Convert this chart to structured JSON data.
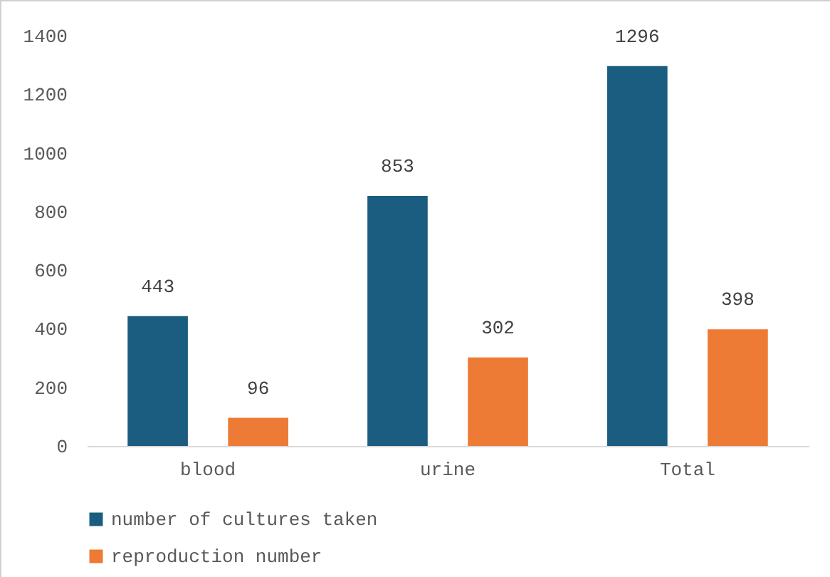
{
  "chart_data": {
    "type": "bar",
    "categories": [
      "blood",
      "urine",
      "Total"
    ],
    "series": [
      {
        "name": "number of cultures taken",
        "color": "#1b5d80",
        "values": [
          443,
          853,
          1296
        ]
      },
      {
        "name": "reproduction number",
        "color": "#ed7a35",
        "values": [
          96,
          302,
          398
        ]
      }
    ],
    "ylim": [
      0,
      1400
    ],
    "yticks": [
      0,
      200,
      400,
      600,
      800,
      1000,
      1200,
      1400
    ],
    "grid": false,
    "legend": "bottom",
    "data_labels": true
  }
}
